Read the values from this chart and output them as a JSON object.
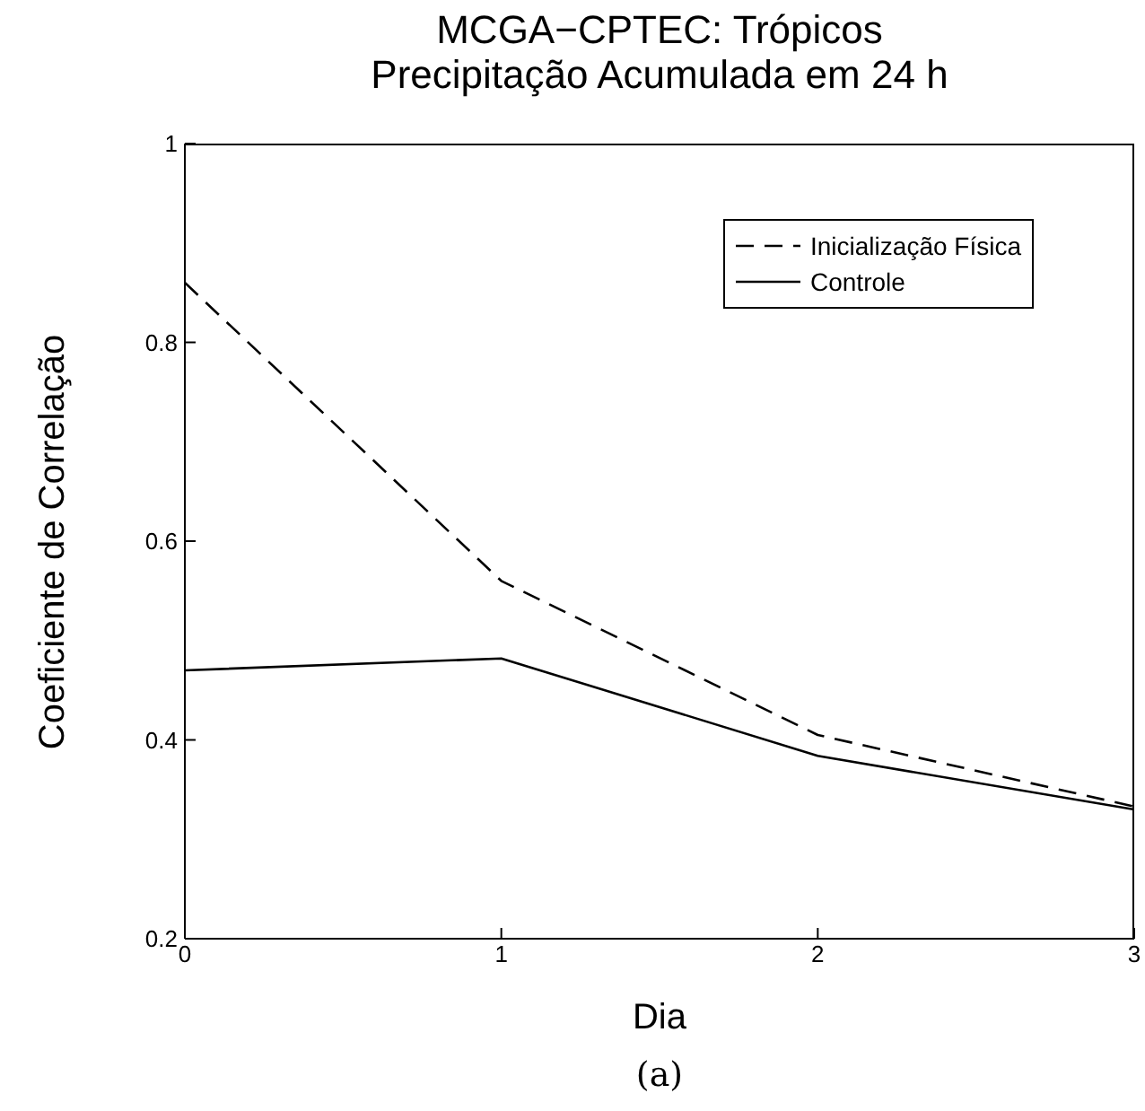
{
  "chart_data": {
    "type": "line",
    "title": "MCGA−CPTEC: Trópicos",
    "subtitle": "Precipitação Acumulada em 24 h",
    "xlabel": "Dia",
    "ylabel": "Coeficiente de Correlação",
    "x": [
      0,
      1,
      2,
      3
    ],
    "xlim": [
      0,
      3
    ],
    "xticks": [
      0,
      1,
      2,
      3
    ],
    "ylim": [
      0.2,
      1
    ],
    "yticks": [
      0.2,
      0.4,
      0.6,
      0.8,
      1
    ],
    "series": [
      {
        "name": "Inicialização Física",
        "color": "#000000",
        "line_style": "dashed",
        "values": [
          0.86,
          0.56,
          0.405,
          0.333
        ]
      },
      {
        "name": "Controle",
        "color": "#000000",
        "line_style": "solid",
        "values": [
          0.47,
          0.482,
          0.384,
          0.33
        ]
      }
    ],
    "legend": "top right",
    "grid": false,
    "marker": "none",
    "annotations": [
      "(a)"
    ]
  }
}
